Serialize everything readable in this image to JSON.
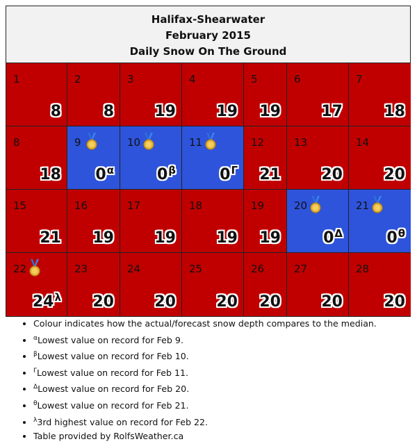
{
  "header": {
    "station": "Halifax-Shearwater",
    "month": "February 2015",
    "title": "Daily Snow On The Ground"
  },
  "colors": {
    "above_median": "#c00000",
    "below_median": "#2e54db"
  },
  "days": [
    {
      "day": "1",
      "value": "8",
      "color": "red",
      "mark": "",
      "medal": false
    },
    {
      "day": "2",
      "value": "8",
      "color": "red",
      "mark": "",
      "medal": false
    },
    {
      "day": "3",
      "value": "19",
      "color": "red",
      "mark": "",
      "medal": false
    },
    {
      "day": "4",
      "value": "19",
      "color": "red",
      "mark": "",
      "medal": false
    },
    {
      "day": "5",
      "value": "19",
      "color": "red",
      "mark": "",
      "medal": false
    },
    {
      "day": "6",
      "value": "17",
      "color": "red",
      "mark": "",
      "medal": false
    },
    {
      "day": "7",
      "value": "18",
      "color": "red",
      "mark": "",
      "medal": false
    },
    {
      "day": "8",
      "value": "18",
      "color": "red",
      "mark": "",
      "medal": false
    },
    {
      "day": "9",
      "value": "0",
      "color": "blue",
      "mark": "α",
      "medal": true
    },
    {
      "day": "10",
      "value": "0",
      "color": "blue",
      "mark": "β",
      "medal": true
    },
    {
      "day": "11",
      "value": "0",
      "color": "blue",
      "mark": "Γ",
      "medal": true
    },
    {
      "day": "12",
      "value": "21",
      "color": "red",
      "mark": "",
      "medal": false
    },
    {
      "day": "13",
      "value": "20",
      "color": "red",
      "mark": "",
      "medal": false
    },
    {
      "day": "14",
      "value": "20",
      "color": "red",
      "mark": "",
      "medal": false
    },
    {
      "day": "15",
      "value": "21",
      "color": "red",
      "mark": "",
      "medal": false
    },
    {
      "day": "16",
      "value": "19",
      "color": "red",
      "mark": "",
      "medal": false
    },
    {
      "day": "17",
      "value": "19",
      "color": "red",
      "mark": "",
      "medal": false
    },
    {
      "day": "18",
      "value": "19",
      "color": "red",
      "mark": "",
      "medal": false
    },
    {
      "day": "19",
      "value": "19",
      "color": "red",
      "mark": "",
      "medal": false
    },
    {
      "day": "20",
      "value": "0",
      "color": "blue",
      "mark": "Δ",
      "medal": true
    },
    {
      "day": "21",
      "value": "0",
      "color": "blue",
      "mark": "θ",
      "medal": true
    },
    {
      "day": "22",
      "value": "24",
      "color": "red",
      "mark": "λ",
      "medal": true
    },
    {
      "day": "23",
      "value": "20",
      "color": "red",
      "mark": "",
      "medal": false
    },
    {
      "day": "24",
      "value": "20",
      "color": "red",
      "mark": "",
      "medal": false
    },
    {
      "day": "25",
      "value": "20",
      "color": "red",
      "mark": "",
      "medal": false
    },
    {
      "day": "26",
      "value": "20",
      "color": "red",
      "mark": "",
      "medal": false
    },
    {
      "day": "27",
      "value": "20",
      "color": "red",
      "mark": "",
      "medal": false
    },
    {
      "day": "28",
      "value": "20",
      "color": "red",
      "mark": "",
      "medal": false
    }
  ],
  "notes": [
    {
      "mark": "",
      "text": "Colour indicates how the actual/forecast snow depth compares to the median."
    },
    {
      "mark": "α",
      "text": "Lowest value on record for Feb 9."
    },
    {
      "mark": "β",
      "text": "Lowest value on record for Feb 10."
    },
    {
      "mark": "Γ",
      "text": "Lowest value on record for Feb 11."
    },
    {
      "mark": "Δ",
      "text": "Lowest value on record for Feb 20."
    },
    {
      "mark": "θ",
      "text": "Lowest value on record for Feb 21."
    },
    {
      "mark": "λ",
      "text": "3rd highest value on record for Feb 22."
    },
    {
      "mark": "",
      "text": "Table provided by RolfsWeather.ca"
    }
  ]
}
